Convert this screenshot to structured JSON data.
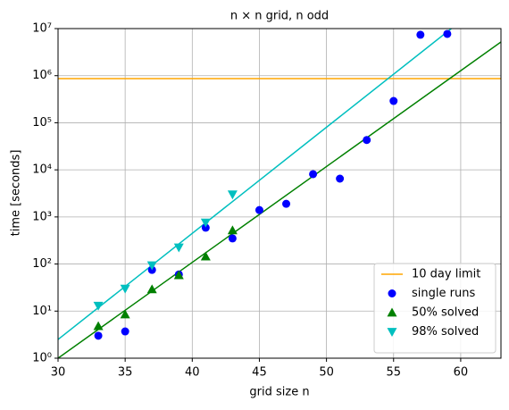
{
  "chart_data": {
    "type": "scatter",
    "title": "n × n grid, n odd",
    "xlabel": "grid size n",
    "ylabel": "time [seconds]",
    "xlim": [
      30,
      63
    ],
    "ylim": [
      1,
      10000000
    ],
    "yscale": "log",
    "grid": true,
    "legend": "lower right",
    "xticks": [
      30,
      35,
      40,
      45,
      50,
      55,
      60
    ],
    "yticks": [
      {
        "value": 1,
        "label": "10⁰"
      },
      {
        "value": 10,
        "label": "10¹"
      },
      {
        "value": 100,
        "label": "10²"
      },
      {
        "value": 1000,
        "label": "10³"
      },
      {
        "value": 10000,
        "label": "10⁴"
      },
      {
        "value": 100000,
        "label": "10⁵"
      },
      {
        "value": 1000000,
        "label": "10⁶"
      },
      {
        "value": 10000000,
        "label": "10⁷"
      }
    ],
    "hlines": [
      {
        "name": "10 day limit",
        "color": "#ffa500",
        "value": 864000
      }
    ],
    "series": [
      {
        "name": "single runs",
        "color": "#0000ff",
        "marker": "circle",
        "x": [
          33,
          35,
          37,
          39,
          41,
          43,
          45,
          47,
          49,
          51,
          53,
          55,
          57,
          59
        ],
        "values": [
          3.0,
          3.7,
          75,
          60,
          590,
          350,
          1400,
          1900,
          8100,
          6500,
          43000,
          290000,
          7400000,
          7700000
        ]
      },
      {
        "name": "50% solved",
        "color": "#008000",
        "marker": "triangle-up",
        "x": [
          33,
          35,
          37,
          39,
          41,
          43
        ],
        "values": [
          4.8,
          8.5,
          29,
          58,
          145,
          520
        ]
      },
      {
        "name": "98% solved",
        "color": "#00bfbf",
        "marker": "triangle-down",
        "x": [
          33,
          35,
          37,
          39,
          41,
          43
        ],
        "values": [
          13,
          30,
          94,
          225,
          760,
          3000
        ]
      }
    ],
    "fit_lines": [
      {
        "color": "#008000",
        "x": [
          30,
          63
        ],
        "values": [
          1,
          5200000
        ]
      },
      {
        "color": "#00bfbf",
        "x": [
          30,
          59.3
        ],
        "values": [
          2.5,
          10000000
        ]
      }
    ]
  }
}
